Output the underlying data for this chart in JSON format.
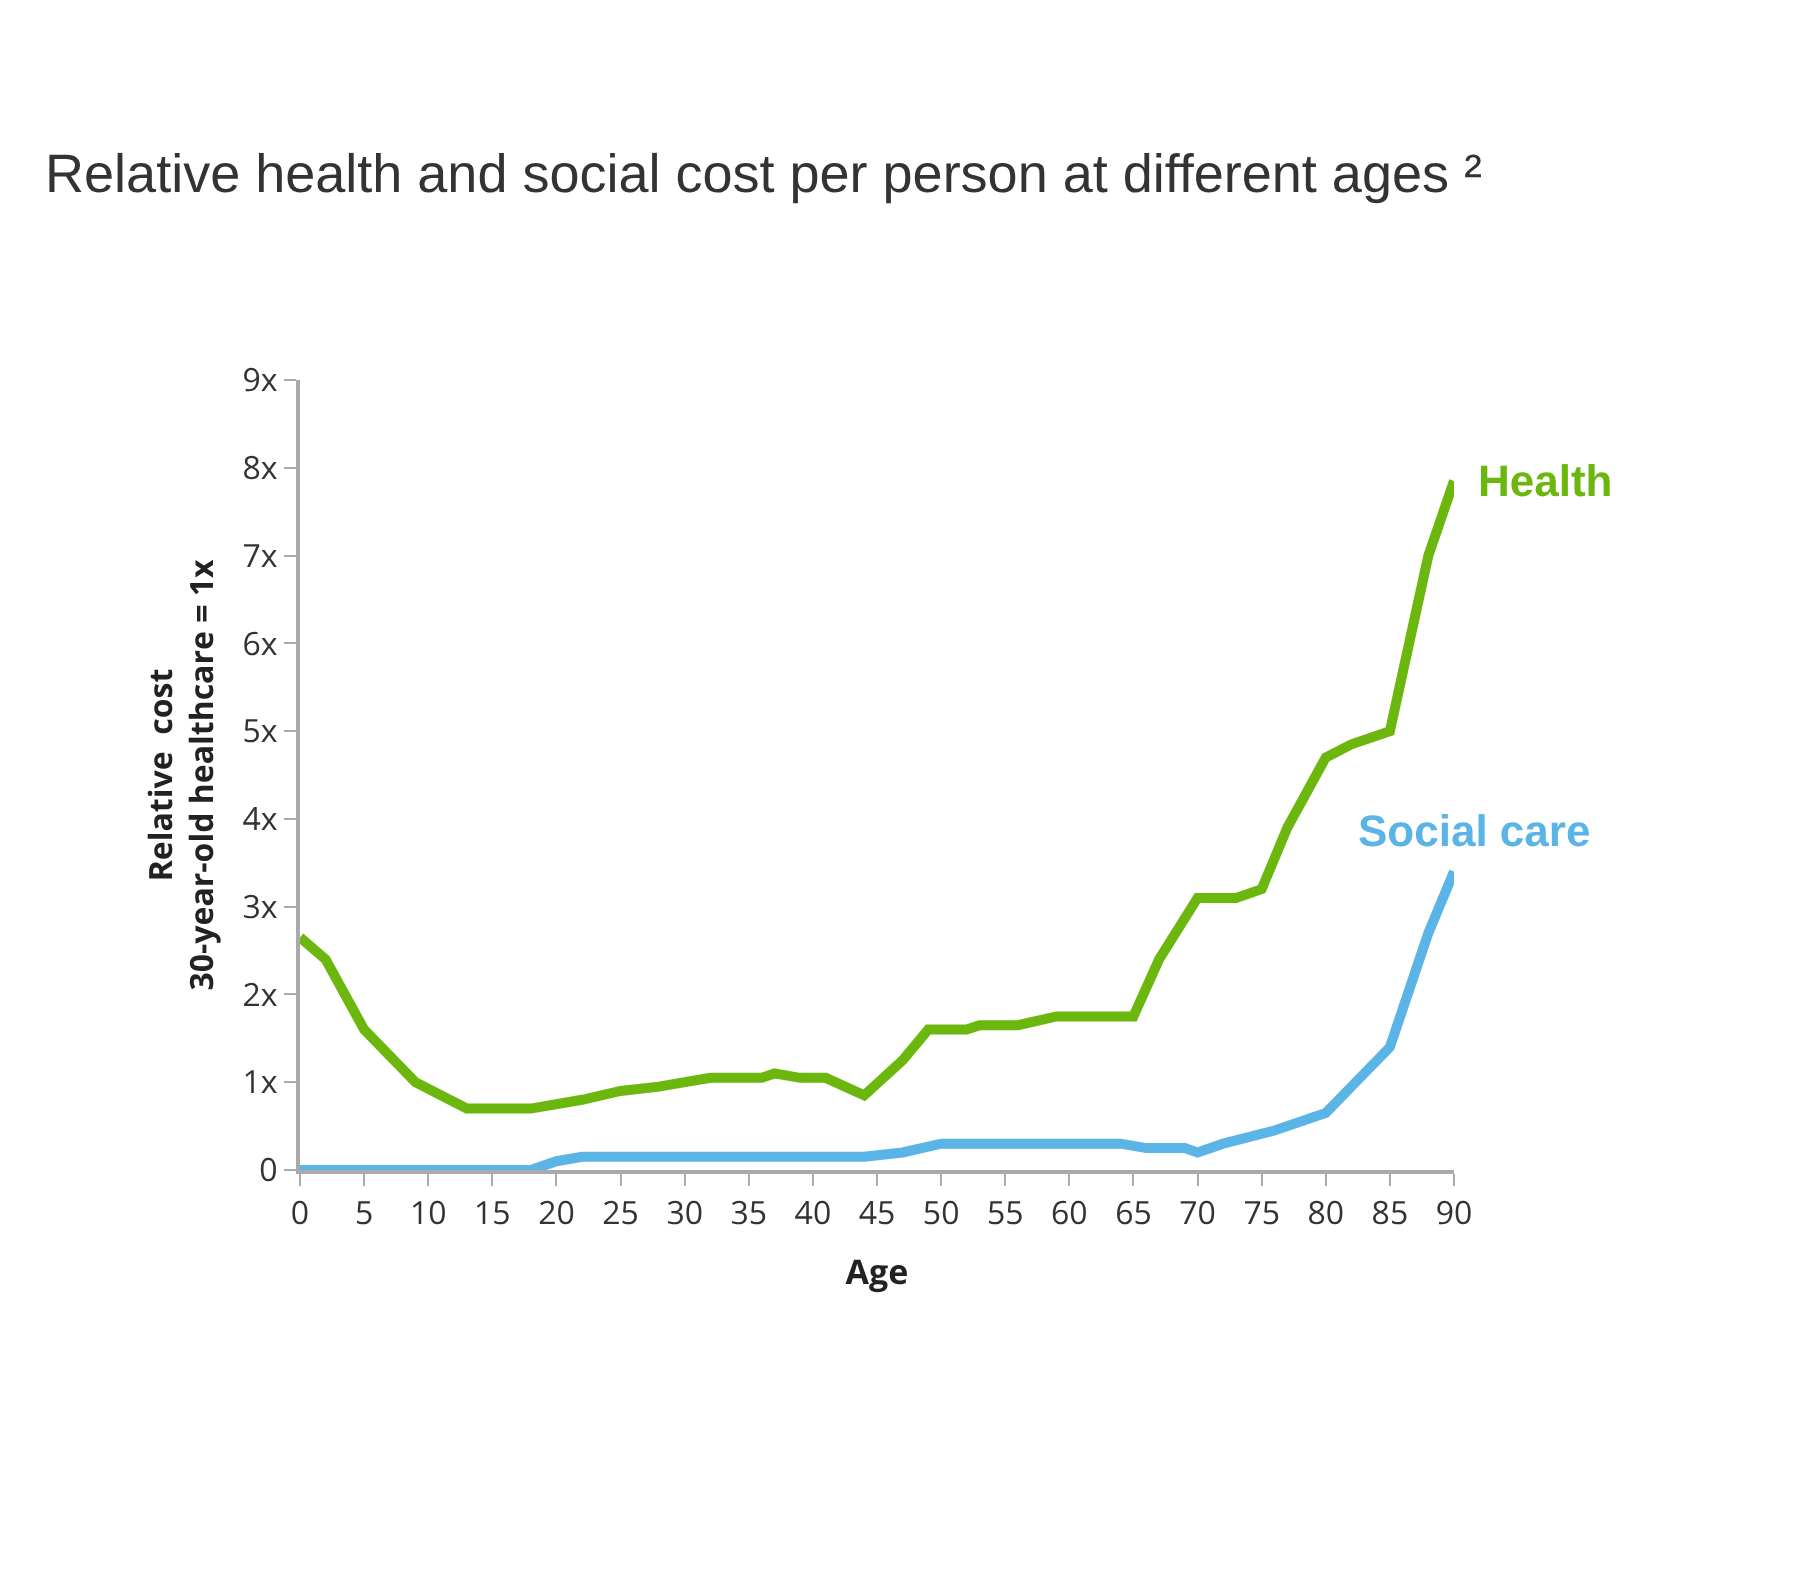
{
  "chart_data": {
    "type": "line",
    "title": "Relative health and social cost per person at different ages ²",
    "xlabel": "Age",
    "ylabel": "Relative  cost\n30-year-old healthcare = 1x",
    "xlim": [
      0,
      90
    ],
    "ylim": [
      0,
      9
    ],
    "xticks": [
      0,
      5,
      10,
      15,
      20,
      25,
      30,
      35,
      40,
      45,
      50,
      55,
      60,
      65,
      70,
      75,
      80,
      85,
      90
    ],
    "yticks": [
      0,
      {
        "value": 1,
        "label": "1x"
      },
      {
        "value": 2,
        "label": "2x"
      },
      {
        "value": 3,
        "label": "3x"
      },
      {
        "value": 4,
        "label": "4x"
      },
      {
        "value": 5,
        "label": "5x"
      },
      {
        "value": 6,
        "label": "6x"
      },
      {
        "value": 7,
        "label": "7x"
      },
      {
        "value": 8,
        "label": "8x"
      },
      {
        "value": 9,
        "label": "9x"
      }
    ],
    "grid": false,
    "legend": false,
    "marker": "none",
    "line_style": "solid",
    "series": [
      {
        "name": "Health",
        "color": "#6cb70e",
        "x": [
          0,
          2,
          5,
          9,
          13,
          18,
          22,
          25,
          28,
          32,
          36,
          37,
          39,
          41,
          44,
          47,
          49,
          52,
          53,
          56,
          59,
          61,
          65,
          67,
          70,
          73,
          75,
          77,
          80,
          82,
          85,
          88,
          90
        ],
        "values": [
          2.65,
          2.4,
          1.6,
          1.0,
          0.7,
          0.7,
          0.8,
          0.9,
          0.95,
          1.05,
          1.05,
          1.1,
          1.05,
          1.05,
          0.85,
          1.25,
          1.6,
          1.6,
          1.65,
          1.65,
          1.75,
          1.75,
          1.75,
          2.4,
          3.1,
          3.1,
          3.2,
          3.9,
          4.7,
          4.85,
          5.0,
          7.0,
          7.85
        ]
      },
      {
        "name": "Social care",
        "color": "#5ab4e5",
        "x": [
          0,
          18,
          20,
          22,
          44,
          47,
          50,
          64,
          66,
          69,
          70,
          72,
          76,
          80,
          82,
          85,
          88,
          90
        ],
        "values": [
          0,
          0,
          0.1,
          0.15,
          0.15,
          0.2,
          0.3,
          0.3,
          0.25,
          0.25,
          0.2,
          0.3,
          0.45,
          0.65,
          0.95,
          1.4,
          2.7,
          3.4
        ]
      }
    ]
  }
}
